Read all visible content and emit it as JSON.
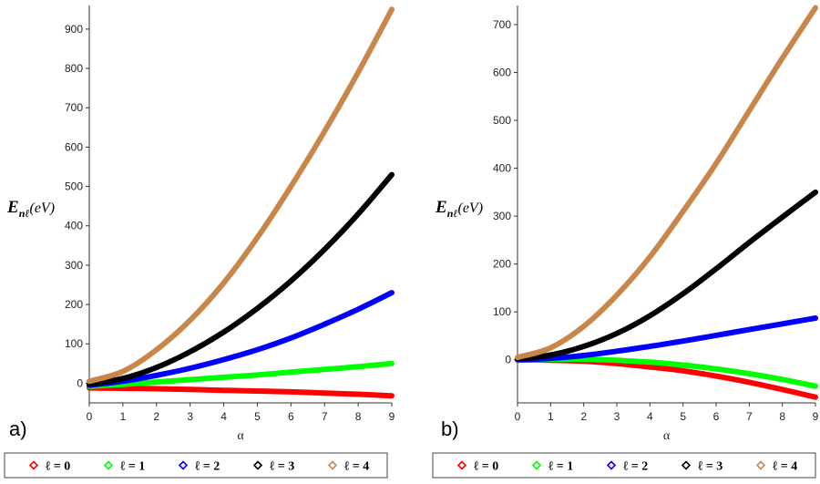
{
  "chart_data": [
    {
      "type": "line",
      "panel_label": "a)",
      "ylabel_main": "E",
      "ylabel_sub": "nℓ",
      "ylabel_unit": "(eV)",
      "xlabel": "α",
      "xlim": [
        0,
        9
      ],
      "ylim": [
        -50,
        960
      ],
      "x_ticks": [
        "0",
        "1",
        "2",
        "3",
        "4",
        "5",
        "6",
        "7",
        "8",
        "9"
      ],
      "y_ticks": [
        "0",
        "100",
        "200",
        "300",
        "400",
        "500",
        "600",
        "700",
        "800",
        "900"
      ],
      "y_tick_values": [
        0,
        100,
        200,
        300,
        400,
        500,
        600,
        700,
        800,
        900
      ],
      "x": [
        0,
        1,
        2,
        3,
        4,
        5,
        6,
        7,
        8,
        9
      ],
      "series": [
        {
          "name": "ℓ = 0",
          "color": "#ff0000",
          "values": [
            -12,
            -13,
            -14,
            -16,
            -18,
            -20,
            -22,
            -25,
            -28,
            -32
          ]
        },
        {
          "name": "ℓ = 1",
          "color": "#00ff00",
          "values": [
            -8,
            -3,
            3,
            9,
            15,
            21,
            28,
            35,
            42,
            50
          ]
        },
        {
          "name": "ℓ = 2",
          "color": "#0000ff",
          "values": [
            -5,
            5,
            20,
            38,
            60,
            85,
            115,
            150,
            188,
            230
          ]
        },
        {
          "name": "ℓ = 3",
          "color": "#000000",
          "values": [
            -3,
            12,
            40,
            80,
            130,
            190,
            260,
            340,
            430,
            530
          ]
        },
        {
          "name": "ℓ = 4",
          "color": "#c8864a",
          "values": [
            5,
            30,
            85,
            160,
            255,
            370,
            500,
            640,
            790,
            950
          ]
        }
      ],
      "legend": {
        "position": "bottom",
        "entries": [
          {
            "label": "ℓ = 0",
            "color": "#ff0000"
          },
          {
            "label": "ℓ = 1",
            "color": "#00ff00"
          },
          {
            "label": "ℓ = 2",
            "color": "#0000ff"
          },
          {
            "label": "ℓ = 3",
            "color": "#000000"
          },
          {
            "label": "ℓ = 4",
            "color": "#c8864a"
          }
        ]
      },
      "grid": false
    },
    {
      "type": "line",
      "panel_label": "b)",
      "ylabel_main": "E",
      "ylabel_sub": "nℓ",
      "ylabel_unit": "(eV)",
      "xlabel": "α",
      "xlim": [
        0,
        9
      ],
      "ylim": [
        -90,
        740
      ],
      "x_ticks": [
        "0",
        "1",
        "2",
        "3",
        "4",
        "5",
        "6",
        "7",
        "8",
        "9"
      ],
      "y_ticks": [
        "0",
        "100",
        "200",
        "300",
        "400",
        "500",
        "600",
        "700"
      ],
      "y_tick_values": [
        0,
        100,
        200,
        300,
        400,
        500,
        600,
        700
      ],
      "x": [
        0,
        1,
        2,
        3,
        4,
        5,
        6,
        7,
        8,
        9
      ],
      "series": [
        {
          "name": "ℓ = 0",
          "color": "#ff0000",
          "values": [
            0,
            -1,
            -3,
            -8,
            -15,
            -23,
            -34,
            -47,
            -62,
            -78
          ]
        },
        {
          "name": "ℓ = 1",
          "color": "#00ff00",
          "values": [
            0,
            1,
            1,
            -1,
            -5,
            -11,
            -19,
            -29,
            -41,
            -55
          ]
        },
        {
          "name": "ℓ = 2",
          "color": "#0000ff",
          "values": [
            0,
            3,
            9,
            18,
            28,
            39,
            51,
            63,
            75,
            87
          ]
        },
        {
          "name": "ℓ = 3",
          "color": "#000000",
          "values": [
            2,
            10,
            28,
            55,
            92,
            138,
            190,
            245,
            298,
            350
          ]
        },
        {
          "name": "ℓ = 4",
          "color": "#c8864a",
          "values": [
            5,
            25,
            70,
            135,
            215,
            310,
            410,
            520,
            630,
            735
          ]
        }
      ],
      "legend": {
        "position": "bottom",
        "entries": [
          {
            "label": "ℓ = 0",
            "color": "#ff0000"
          },
          {
            "label": "ℓ = 1",
            "color": "#00ff00"
          },
          {
            "label": "ℓ = 2",
            "color": "#0000ff"
          },
          {
            "label": "ℓ = 3",
            "color": "#000000"
          },
          {
            "label": "ℓ = 4",
            "color": "#c8864a"
          }
        ]
      },
      "grid": false
    }
  ]
}
